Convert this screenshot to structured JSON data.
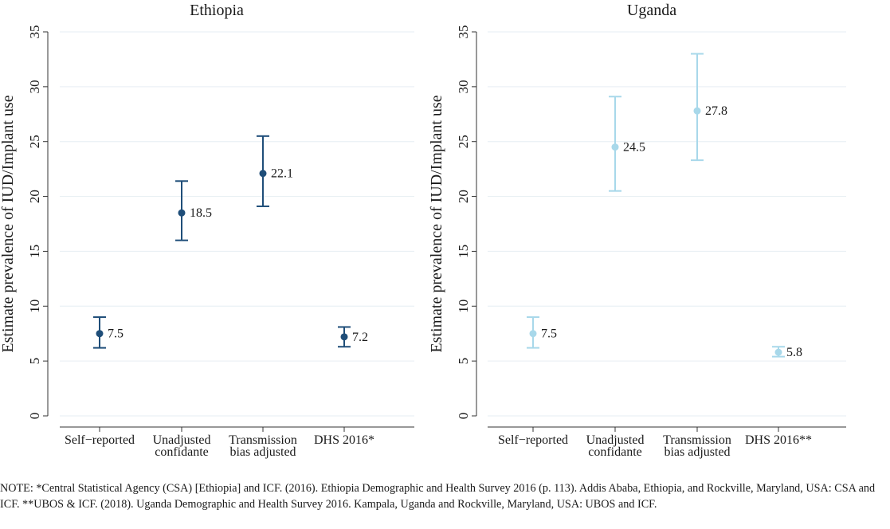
{
  "note": "NOTE: *Central Statistical Agency (CSA) [Ethiopia] and ICF. (2016). Ethiopia Demographic and Health Survey 2016 (p. 113). Addis Ababa, Ethiopia, and Rockville, Maryland, USA: CSA and ICF. **UBOS & ICF. (2018). Uganda Demographic and Health Survey 2016. Kampala, Uganda and Rockville, Maryland, USA: UBOS and ICF.",
  "chart_data": [
    {
      "type": "errorbar",
      "title": "Ethiopia",
      "ylabel": "Estimate prevalence of IUD/Implant use",
      "xlabel": "",
      "ylim": [
        0,
        35
      ],
      "yticks": [
        "0",
        "5",
        "10",
        "15",
        "20",
        "25",
        "30",
        "35"
      ],
      "grid": true,
      "color": "#1f4e79",
      "categories": [
        [
          "Self−reported"
        ],
        [
          "Unadjusted",
          "confidante"
        ],
        [
          "Transmission",
          "bias adjusted"
        ],
        [
          "DHS 2016*"
        ]
      ],
      "values": [
        7.5,
        18.5,
        22.1,
        7.2
      ],
      "labels": [
        "7.5",
        "18.5",
        "22.1",
        "7.2"
      ],
      "lower": [
        6.2,
        16.0,
        19.1,
        6.3
      ],
      "upper": [
        9.0,
        21.4,
        25.5,
        8.1
      ]
    },
    {
      "type": "errorbar",
      "title": "Uganda",
      "ylabel": "Estimate prevalence of IUD/Implant use",
      "xlabel": "",
      "ylim": [
        0,
        35
      ],
      "yticks": [
        "0",
        "5",
        "10",
        "15",
        "20",
        "25",
        "30",
        "35"
      ],
      "grid": true,
      "color": "#a8d8ea",
      "categories": [
        [
          "Self−reported"
        ],
        [
          "Unadjusted",
          "confidante"
        ],
        [
          "Transmission",
          "bias adjusted"
        ],
        [
          "DHS 2016**"
        ]
      ],
      "values": [
        7.5,
        24.5,
        27.8,
        5.8
      ],
      "labels": [
        "7.5",
        "24.5",
        "27.8",
        "5.8"
      ],
      "lower": [
        6.2,
        20.5,
        23.3,
        5.4
      ],
      "upper": [
        9.0,
        29.1,
        33.0,
        6.3
      ]
    }
  ]
}
